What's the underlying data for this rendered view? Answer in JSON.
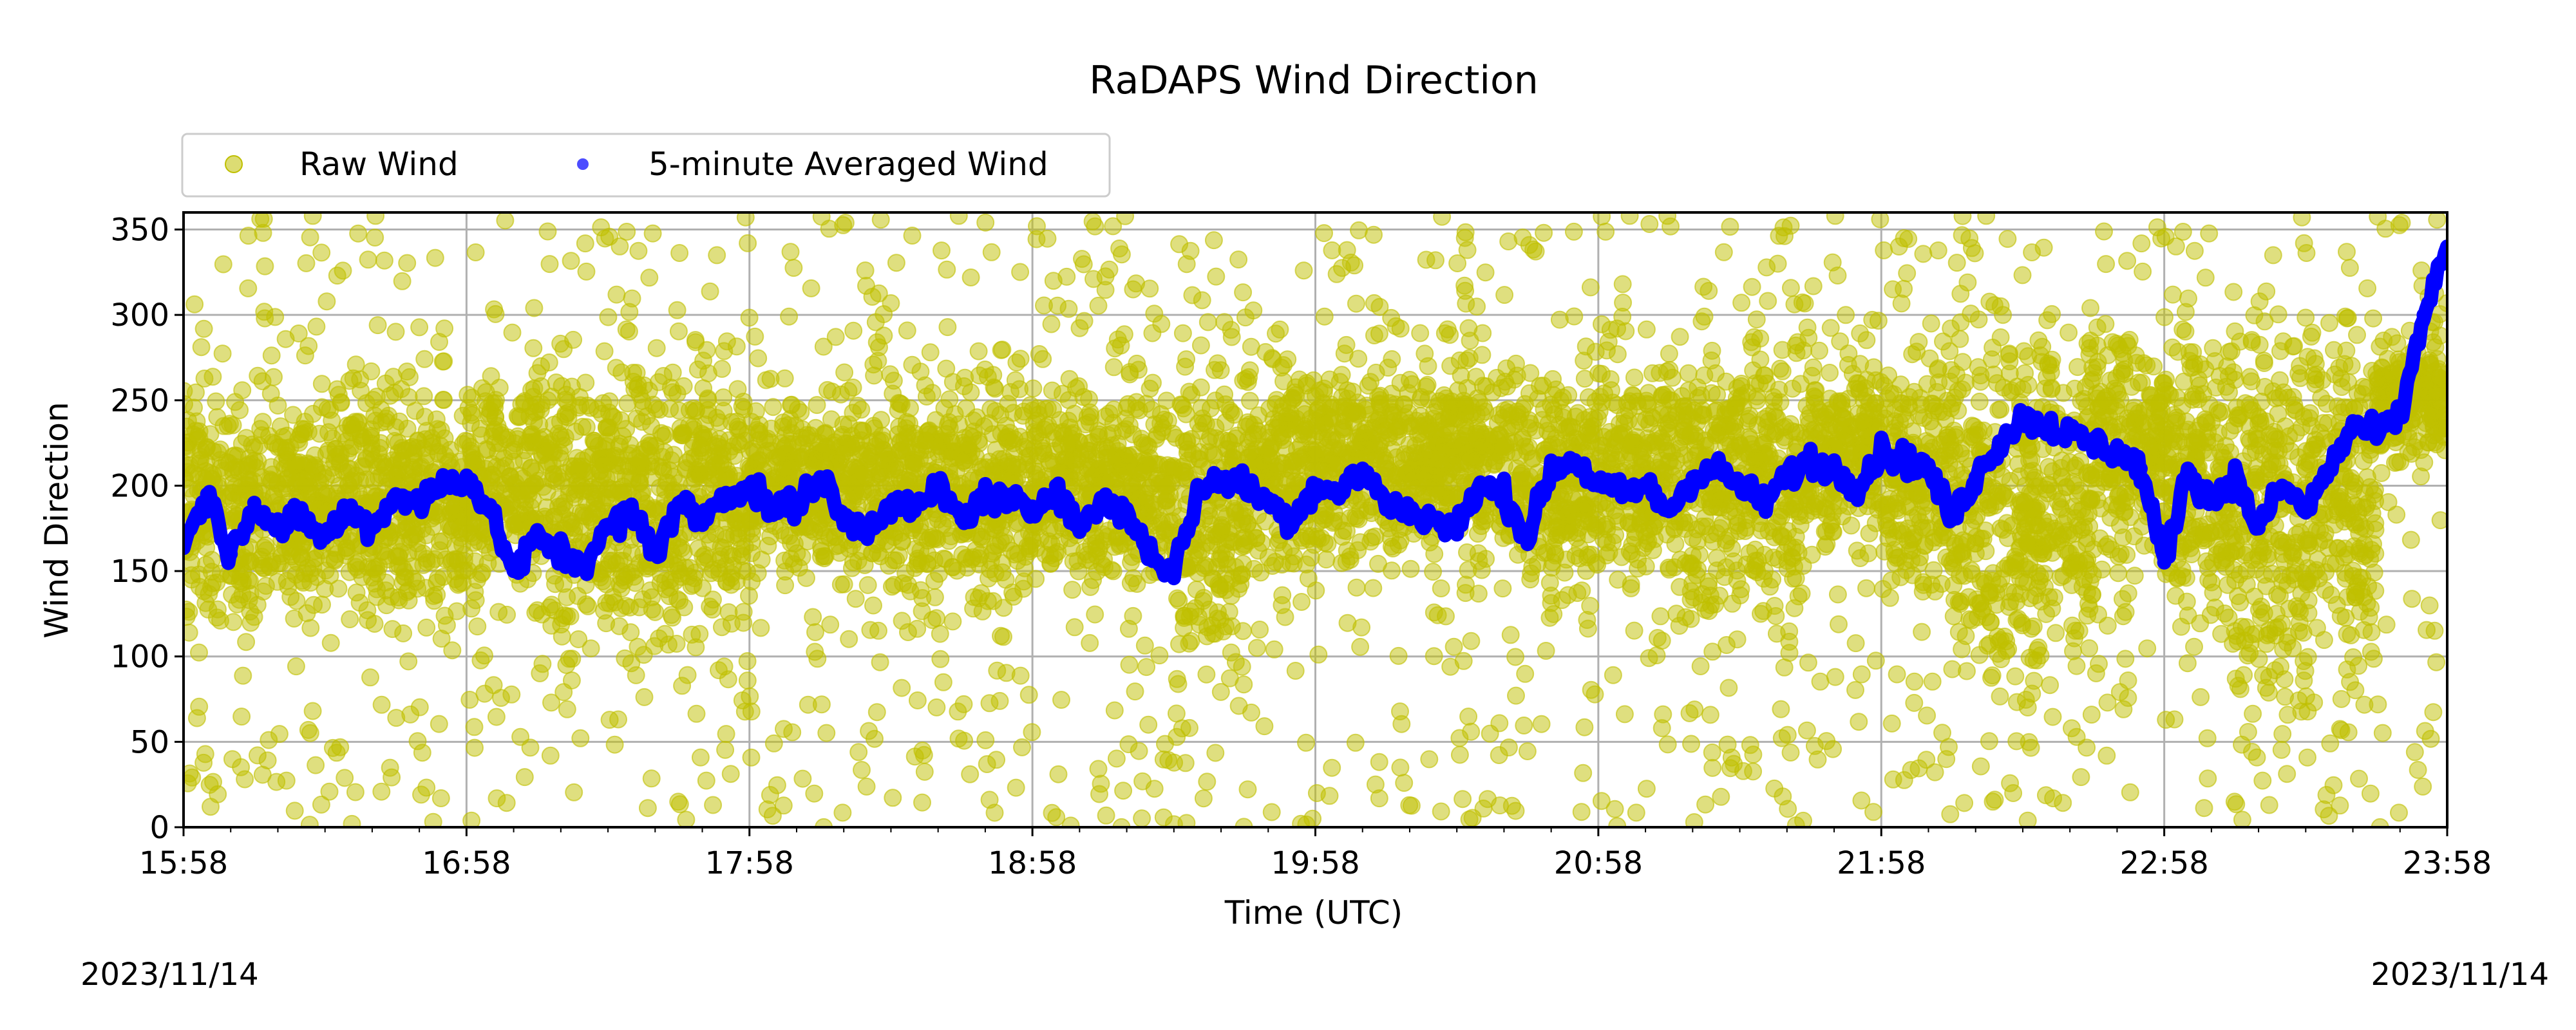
{
  "chart_data": {
    "type": "scatter",
    "title": "RaDAPS Wind Direction",
    "xlabel": "Time (UTC)",
    "ylabel": "Wind Direction",
    "xlim": [
      "15:58",
      "23:58"
    ],
    "ylim": [
      0,
      360
    ],
    "x_ticks": [
      "15:58",
      "16:58",
      "17:58",
      "18:58",
      "19:58",
      "20:58",
      "21:58",
      "22:58",
      "23:58"
    ],
    "y_ticks": [
      0,
      50,
      100,
      150,
      200,
      250,
      300,
      350
    ],
    "grid": true,
    "legend_placement": "top-left, above plot",
    "date_start": "2023/11/14",
    "date_end": "2023/11/14",
    "series": [
      {
        "name": "Raw Wind",
        "marker": "circle",
        "color": "#bfbf00",
        "x": [
          "15:58",
          "16:13",
          "16:28",
          "16:43",
          "16:58",
          "17:13",
          "17:28",
          "17:43",
          "17:58",
          "18:13",
          "18:28",
          "18:43",
          "18:58",
          "19:13",
          "19:28",
          "19:43",
          "19:58",
          "20:13",
          "20:28",
          "20:43",
          "20:58",
          "21:13",
          "21:28",
          "21:43",
          "21:58",
          "22:13",
          "22:28",
          "22:43",
          "22:58",
          "23:13",
          "23:28",
          "23:43",
          "23:58"
        ],
        "y_typical_range": [
          [
            90,
            280
          ],
          [
            100,
            270
          ],
          [
            100,
            290
          ],
          [
            100,
            280
          ],
          [
            110,
            290
          ],
          [
            80,
            300
          ],
          [
            60,
            320
          ],
          [
            90,
            300
          ],
          [
            130,
            270
          ],
          [
            120,
            280
          ],
          [
            110,
            290
          ],
          [
            100,
            290
          ],
          [
            120,
            280
          ],
          [
            110,
            290
          ],
          [
            60,
            320
          ],
          [
            120,
            300
          ],
          [
            130,
            300
          ],
          [
            140,
            290
          ],
          [
            130,
            300
          ],
          [
            100,
            300
          ],
          [
            120,
            300
          ],
          [
            90,
            320
          ],
          [
            100,
            320
          ],
          [
            140,
            300
          ],
          [
            110,
            310
          ],
          [
            30,
            350
          ],
          [
            40,
            340
          ],
          [
            120,
            320
          ],
          [
            80,
            330
          ],
          [
            20,
            350
          ],
          [
            30,
            350
          ],
          [
            200,
            300
          ],
          [
            150,
            360
          ]
        ]
      },
      {
        "name": "5-minute Averaged Wind",
        "marker": "circle",
        "color": "#0000ff",
        "x": [
          "15:58",
          "16:03",
          "16:08",
          "16:13",
          "16:18",
          "16:23",
          "16:28",
          "16:33",
          "16:38",
          "16:43",
          "16:48",
          "16:53",
          "16:58",
          "17:03",
          "17:08",
          "17:13",
          "17:18",
          "17:23",
          "17:28",
          "17:33",
          "17:38",
          "17:43",
          "17:48",
          "17:53",
          "17:58",
          "18:03",
          "18:08",
          "18:13",
          "18:18",
          "18:23",
          "18:28",
          "18:33",
          "18:38",
          "18:43",
          "18:48",
          "18:53",
          "18:58",
          "19:03",
          "19:08",
          "19:13",
          "19:18",
          "19:23",
          "19:28",
          "19:33",
          "19:38",
          "19:43",
          "19:48",
          "19:53",
          "19:58",
          "20:03",
          "20:08",
          "20:13",
          "20:18",
          "20:23",
          "20:28",
          "20:33",
          "20:38",
          "20:43",
          "20:48",
          "20:53",
          "20:58",
          "21:03",
          "21:08",
          "21:13",
          "21:18",
          "21:23",
          "21:28",
          "21:33",
          "21:38",
          "21:43",
          "21:48",
          "21:53",
          "21:58",
          "22:03",
          "22:08",
          "22:13",
          "22:18",
          "22:23",
          "22:28",
          "22:33",
          "22:38",
          "22:43",
          "22:48",
          "22:53",
          "22:58",
          "23:03",
          "23:08",
          "23:13",
          "23:18",
          "23:23",
          "23:28",
          "23:33",
          "23:38",
          "23:43",
          "23:48",
          "23:53",
          "23:58"
        ],
        "y": [
          165,
          195,
          160,
          190,
          175,
          180,
          170,
          185,
          175,
          195,
          190,
          200,
          205,
          185,
          150,
          170,
          160,
          155,
          175,
          185,
          160,
          190,
          180,
          195,
          200,
          185,
          190,
          205,
          180,
          175,
          190,
          185,
          200,
          180,
          195,
          190,
          185,
          200,
          175,
          190,
          185,
          160,
          150,
          195,
          205,
          200,
          190,
          180,
          200,
          195,
          210,
          190,
          185,
          180,
          175,
          200,
          195,
          170,
          210,
          215,
          200,
          195,
          200,
          185,
          205,
          210,
          200,
          190,
          205,
          215,
          210,
          200,
          220,
          215,
          210,
          180,
          205,
          225,
          240,
          235,
          230,
          225,
          220,
          210,
          155,
          210,
          190,
          205,
          175,
          200,
          185,
          210,
          235,
          230,
          240,
          300,
          340
        ]
      }
    ]
  }
}
